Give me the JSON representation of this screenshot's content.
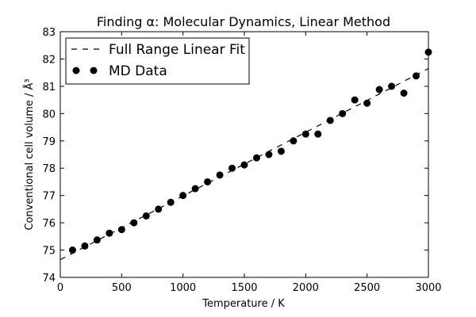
{
  "chart_data": {
    "type": "scatter",
    "title": "Finding α: Molecular Dynamics, Linear Method",
    "xlabel": "Temperature / K",
    "ylabel": "Conventional cell volume / Å³",
    "xlim": [
      0,
      3000
    ],
    "ylim": [
      74,
      83
    ],
    "xticks": [
      0,
      500,
      1000,
      1500,
      2000,
      2500,
      3000
    ],
    "yticks": [
      74,
      75,
      76,
      77,
      78,
      79,
      80,
      81,
      82,
      83
    ],
    "legend_position": "top-left",
    "series": [
      {
        "name": "Full Range Linear Fit",
        "style": "dashed-line",
        "color": "#000000",
        "x": [
          0,
          3000
        ],
        "y": [
          74.65,
          81.65
        ]
      },
      {
        "name": "MD Data",
        "style": "markers",
        "color": "#000000",
        "x": [
          100,
          200,
          300,
          400,
          500,
          600,
          700,
          800,
          900,
          1000,
          1100,
          1200,
          1300,
          1400,
          1500,
          1600,
          1700,
          1800,
          1900,
          2000,
          2100,
          2200,
          2300,
          2400,
          2500,
          2600,
          2700,
          2800,
          2900,
          3000
        ],
        "y": [
          75.0,
          75.15,
          75.37,
          75.62,
          75.75,
          76.0,
          76.25,
          76.5,
          76.75,
          77.0,
          77.25,
          77.5,
          77.75,
          78.0,
          78.12,
          78.38,
          78.5,
          78.62,
          79.0,
          79.25,
          79.25,
          79.75,
          80.0,
          80.5,
          80.38,
          80.88,
          81.0,
          80.75,
          81.38,
          82.25
        ]
      }
    ]
  }
}
